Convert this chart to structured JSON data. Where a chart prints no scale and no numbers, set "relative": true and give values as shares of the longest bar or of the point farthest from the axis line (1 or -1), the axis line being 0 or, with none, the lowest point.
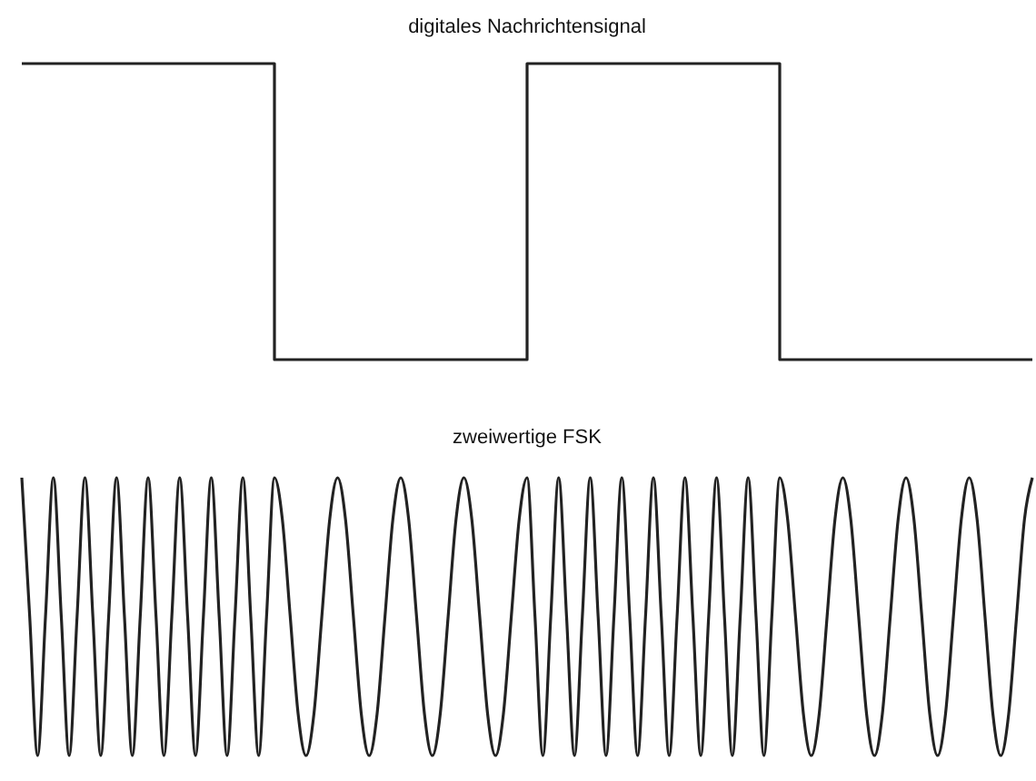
{
  "chart_data": [
    {
      "type": "step",
      "title": "digitales Nachrichtensignal",
      "relative": true,
      "tick_labels": false,
      "color": "#222222",
      "categories": [
        null,
        null,
        null,
        null,
        null
      ],
      "values": [
        1,
        0,
        1,
        0,
        0
      ]
    },
    {
      "type": "line",
      "title": "zweiwertige FSK",
      "relative": true,
      "tick_labels": false,
      "color": "#222222",
      "categories": [
        null,
        null,
        null,
        null,
        null,
        null,
        null,
        null,
        null,
        null,
        null,
        null,
        null,
        null,
        null,
        null,
        null,
        null,
        null,
        null,
        null,
        null,
        null,
        null,
        null,
        null,
        null,
        null,
        null,
        null,
        null,
        null,
        null,
        null,
        null,
        null,
        null,
        null,
        null,
        null,
        null,
        null,
        null,
        null,
        null,
        null,
        null,
        null,
        null,
        null,
        null,
        null,
        null,
        null,
        null,
        null,
        null,
        null,
        null,
        null,
        null,
        null,
        null,
        null,
        null,
        null,
        null,
        null,
        null,
        null,
        null,
        null,
        null,
        null,
        null,
        null,
        null,
        null,
        null,
        null,
        null,
        null,
        null,
        null,
        null,
        null,
        null,
        null,
        null,
        null,
        null,
        null,
        null,
        null,
        null,
        null,
        null,
        null,
        null,
        null,
        null,
        null,
        null,
        null,
        null,
        null,
        null,
        null,
        null,
        null,
        null,
        null,
        null,
        null,
        null,
        null,
        null,
        null,
        null,
        null,
        null,
        null,
        null,
        null,
        null,
        null,
        null,
        null,
        null
      ],
      "values": [
        1,
        0.5,
        0,
        0.5,
        1,
        0.5,
        0,
        0.5,
        1,
        0.5,
        0,
        0.5,
        1,
        0.5,
        0,
        0.5,
        1,
        0.5,
        0,
        0.5,
        1,
        0.5,
        0,
        0.5,
        1,
        0.5,
        0,
        0.5,
        1,
        0.5,
        0,
        0.5,
        1,
        0.85,
        0.5,
        0.15,
        0,
        0.15,
        0.5,
        0.85,
        1,
        0.85,
        0.5,
        0.15,
        0,
        0.15,
        0.5,
        0.85,
        1,
        0.85,
        0.5,
        0.15,
        0,
        0.15,
        0.5,
        0.85,
        1,
        0.85,
        0.5,
        0.15,
        0,
        0.15,
        0.5,
        0.85,
        1,
        0.5,
        0,
        0.5,
        1,
        0.5,
        0,
        0.5,
        1,
        0.5,
        0,
        0.5,
        1,
        0.5,
        0,
        0.5,
        1,
        0.5,
        0,
        0.5,
        1,
        0.5,
        0,
        0.5,
        1,
        0.5,
        0,
        0.5,
        1,
        0.5,
        0,
        0.5,
        1,
        0.85,
        0.5,
        0.15,
        0,
        0.15,
        0.5,
        0.85,
        1,
        0.85,
        0.5,
        0.15,
        0,
        0.15,
        0.5,
        0.85,
        1,
        0.85,
        0.5,
        0.15,
        0,
        0.15,
        0.5,
        0.85,
        1,
        0.85,
        0.5,
        0.15,
        0,
        0.15,
        0.5,
        0.85,
        1
      ]
    }
  ]
}
